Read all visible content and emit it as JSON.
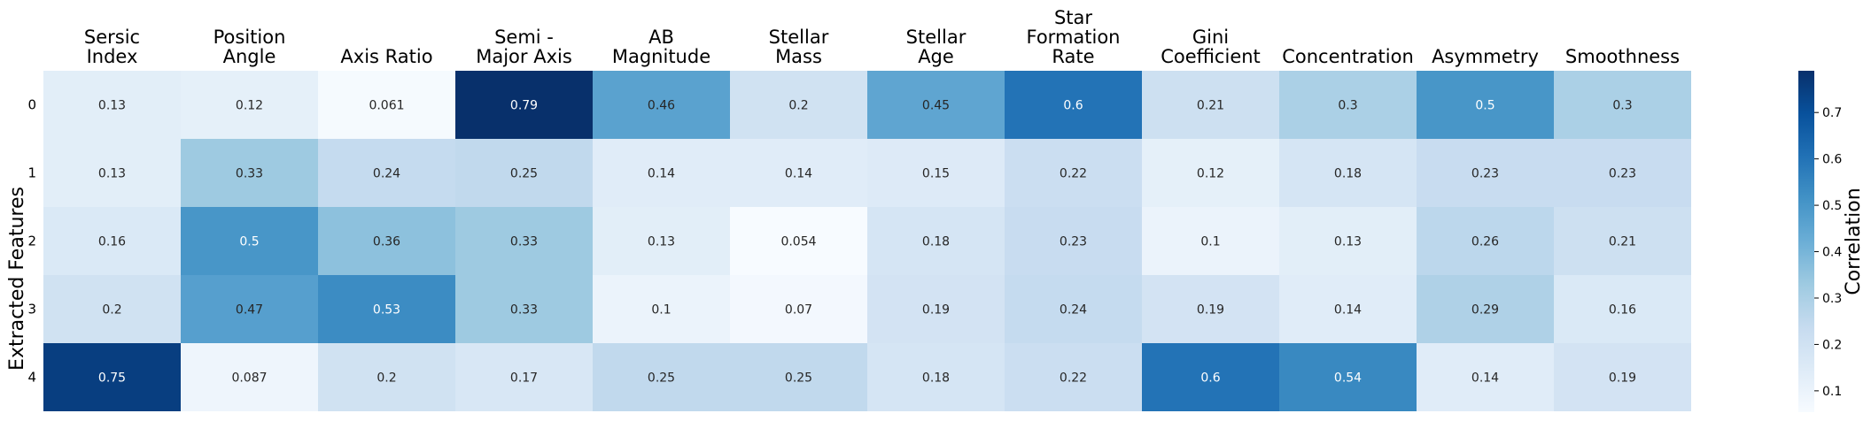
{
  "chart_data": {
    "type": "heatmap",
    "columns": [
      [
        "Sersic",
        "Index"
      ],
      [
        "Position",
        "Angle"
      ],
      [
        "Axis Ratio"
      ],
      [
        "Semi -",
        "Major Axis"
      ],
      [
        "AB",
        "Magnitude"
      ],
      [
        "Stellar",
        "Mass"
      ],
      [
        "Stellar",
        "Age"
      ],
      [
        "Star",
        "Formation",
        "Rate"
      ],
      [
        "Gini",
        "Coefficient"
      ],
      [
        "Concentration"
      ],
      [
        "Asymmetry"
      ],
      [
        "Smoothness"
      ]
    ],
    "rows": [
      "0",
      "1",
      "2",
      "3",
      "4"
    ],
    "values": [
      [
        0.13,
        0.12,
        0.061,
        0.79,
        0.46,
        0.2,
        0.45,
        0.6,
        0.21,
        0.3,
        0.5,
        0.3
      ],
      [
        0.13,
        0.33,
        0.24,
        0.25,
        0.14,
        0.14,
        0.15,
        0.22,
        0.12,
        0.18,
        0.23,
        0.23
      ],
      [
        0.16,
        0.5,
        0.36,
        0.33,
        0.13,
        0.054,
        0.18,
        0.23,
        0.1,
        0.13,
        0.26,
        0.21
      ],
      [
        0.2,
        0.47,
        0.53,
        0.33,
        0.1,
        0.07,
        0.19,
        0.24,
        0.19,
        0.14,
        0.29,
        0.16
      ],
      [
        0.75,
        0.087,
        0.2,
        0.17,
        0.25,
        0.25,
        0.18,
        0.22,
        0.6,
        0.54,
        0.14,
        0.19
      ]
    ],
    "ylabel": "Extracted Features",
    "colorbar": {
      "label": "Correlation",
      "ticks": [
        "0.1",
        "0.2",
        "0.3",
        "0.4",
        "0.5",
        "0.6",
        "0.7"
      ],
      "range": [
        0.054,
        0.79
      ],
      "colormap": "Blues"
    }
  }
}
